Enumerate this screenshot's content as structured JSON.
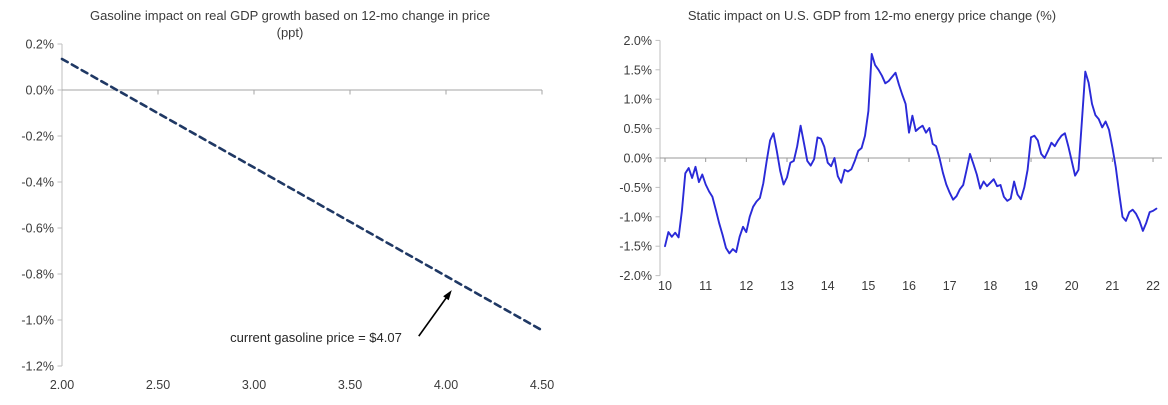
{
  "page": {
    "background": "#ffffff"
  },
  "chart_data": [
    {
      "type": "line",
      "title": "Gasoline impact on real GDP growth  based on 12-mo change in price (ppt)",
      "x": [
        2.0,
        4.49
      ],
      "values": [
        0.135,
        -1.04
      ],
      "series_name": "gasoline-impact-on-gdp",
      "x_ticks": [
        "2.00",
        "2.50",
        "3.00",
        "3.50",
        "4.00",
        "4.50"
      ],
      "x_tick_values": [
        2.0,
        2.5,
        3.0,
        3.5,
        4.0,
        4.5
      ],
      "y_ticks": [
        "0.2%",
        "0.0%",
        "-0.2%",
        "-0.4%",
        "-0.6%",
        "-0.8%",
        "-1.0%",
        "-1.2%"
      ],
      "y_tick_values": [
        0.2,
        0.0,
        -0.2,
        -0.4,
        -0.6,
        -0.8,
        -1.0,
        -1.2
      ],
      "xlim": [
        2.0,
        4.5
      ],
      "ylim": [
        -1.2,
        0.2
      ],
      "grid": "zero-line-only",
      "legend": "none",
      "line_color": "#1f3864",
      "line_style": "dashed",
      "axis_color": "#bfbfbf",
      "zero_line_color": "#a6a6a6",
      "annotation": {
        "text": "current gasoline price = $4.07",
        "arrow_color": "#000000",
        "points_to": {
          "x": 4.03,
          "y": -0.87
        }
      }
    },
    {
      "type": "line",
      "title": "Static impact on U.S. GDP from 12-mo energy price change (%)",
      "series": [
        {
          "name": "static-gdp-impact",
          "start_year": 2010.0,
          "step_years": 0.08333,
          "values": [
            -1.5,
            -1.26,
            -1.34,
            -1.27,
            -1.35,
            -0.9,
            -0.26,
            -0.17,
            -0.34,
            -0.15,
            -0.41,
            -0.28,
            -0.45,
            -0.57,
            -0.66,
            -0.88,
            -1.11,
            -1.31,
            -1.53,
            -1.62,
            -1.55,
            -1.6,
            -1.34,
            -1.17,
            -1.26,
            -1.0,
            -0.83,
            -0.74,
            -0.68,
            -0.43,
            -0.05,
            0.3,
            0.42,
            0.12,
            -0.22,
            -0.45,
            -0.33,
            -0.08,
            -0.05,
            0.2,
            0.55,
            0.25,
            -0.05,
            -0.13,
            -0.02,
            0.35,
            0.33,
            0.19,
            -0.08,
            -0.14,
            0.0,
            -0.31,
            -0.42,
            -0.2,
            -0.23,
            -0.19,
            -0.05,
            0.12,
            0.17,
            0.38,
            0.8,
            1.77,
            1.58,
            1.5,
            1.4,
            1.27,
            1.31,
            1.38,
            1.45,
            1.25,
            1.08,
            0.92,
            0.43,
            0.72,
            0.46,
            0.51,
            0.55,
            0.43,
            0.51,
            0.24,
            0.2,
            0.0,
            -0.25,
            -0.45,
            -0.59,
            -0.71,
            -0.65,
            -0.53,
            -0.46,
            -0.2,
            0.07,
            -0.1,
            -0.28,
            -0.52,
            -0.4,
            -0.48,
            -0.42,
            -0.36,
            -0.48,
            -0.46,
            -0.66,
            -0.73,
            -0.69,
            -0.4,
            -0.62,
            -0.7,
            -0.5,
            -0.2,
            0.35,
            0.38,
            0.3,
            0.07,
            0.0,
            0.12,
            0.26,
            0.2,
            0.3,
            0.38,
            0.42,
            0.2,
            -0.05,
            -0.3,
            -0.2,
            0.63,
            1.47,
            1.28,
            0.92,
            0.73,
            0.66,
            0.52,
            0.62,
            0.48,
            0.18,
            -0.16,
            -0.59,
            -1.0,
            -1.07,
            -0.92,
            -0.88,
            -0.95,
            -1.07,
            -1.24,
            -1.1,
            -0.92,
            -0.9,
            -0.86
          ]
        }
      ],
      "x_ticks": [
        "10",
        "11",
        "12",
        "13",
        "14",
        "15",
        "16",
        "17",
        "18",
        "19",
        "20",
        "21",
        "22"
      ],
      "x_tick_values": [
        10,
        11,
        12,
        13,
        14,
        15,
        16,
        17,
        18,
        19,
        20,
        21,
        22
      ],
      "y_ticks": [
        "2.0%",
        "1.5%",
        "1.0%",
        "0.5%",
        "0.0%",
        "-0.5%",
        "-1.0%",
        "-1.5%",
        "-2.0%"
      ],
      "y_tick_values": [
        2.0,
        1.5,
        1.0,
        0.5,
        0.0,
        -0.5,
        -1.0,
        -1.5,
        -2.0
      ],
      "xlim": [
        10,
        22.2
      ],
      "ylim": [
        -2.0,
        2.0
      ],
      "grid": "zero-line-only",
      "legend": "none",
      "line_color": "#2a2ad8",
      "line_style": "solid",
      "axis_color": "#bfbfbf",
      "zero_line_color": "#999999"
    }
  ]
}
